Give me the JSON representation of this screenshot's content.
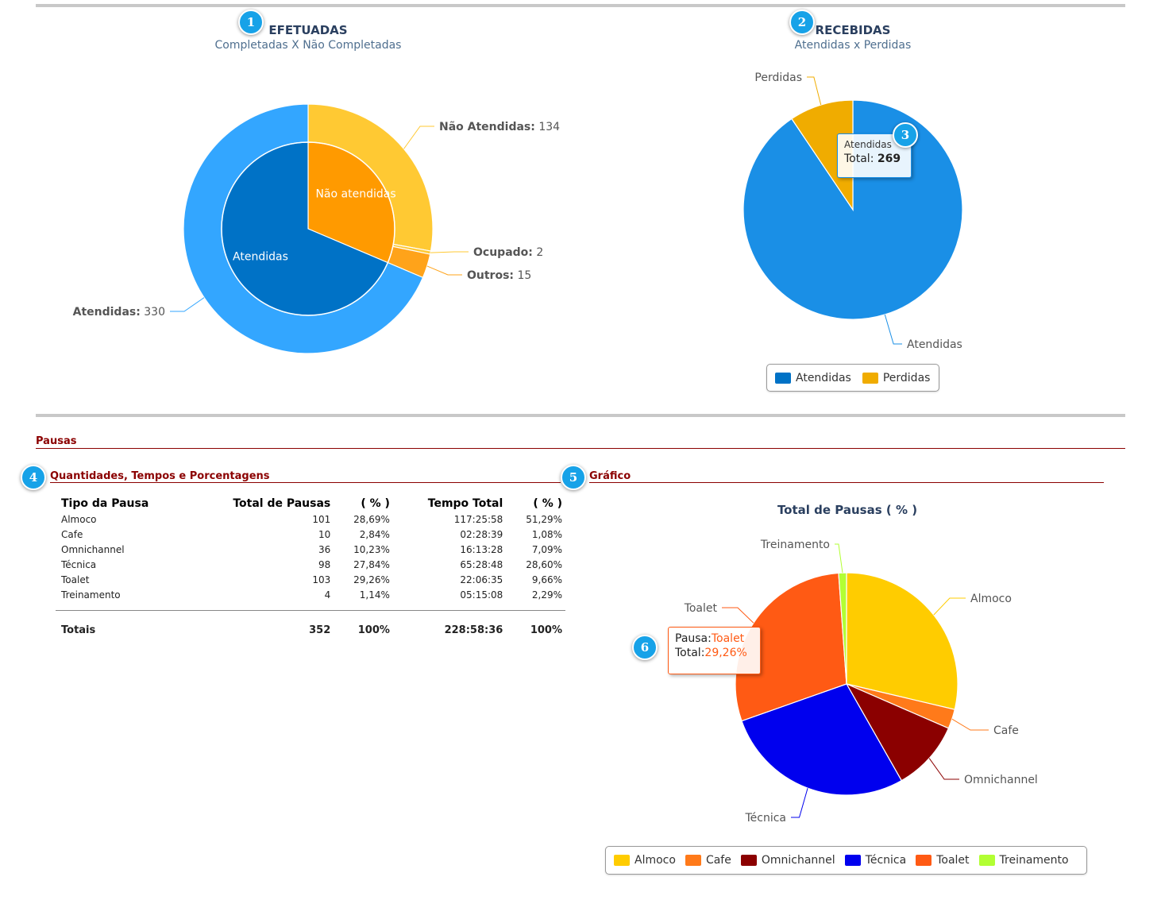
{
  "efetuadas": {
    "badge": "1",
    "title": "EFETUADAS",
    "subtitle": "Completadas X Não Completadas",
    "outer": [
      {
        "name": "Não Atendidas",
        "value": 134,
        "color": "#ffc933"
      },
      {
        "name": "Ocupado",
        "value": 2,
        "color": "#ffc933"
      },
      {
        "name": "Outros",
        "value": 15,
        "color": "#ffa31a"
      },
      {
        "name": "Atendidas",
        "value": 330,
        "color": "#33a6ff"
      }
    ],
    "inner": [
      {
        "name": "Não atendidas",
        "value": 151,
        "color": "#ff9a00"
      },
      {
        "name": "Atendidas",
        "value": 330,
        "color": "#0072c6"
      }
    ]
  },
  "recebidas": {
    "badge": "2",
    "title": "RECEBIDAS",
    "subtitle": "Atendidas x Perdidas",
    "tooltip_badge": "3",
    "tooltip_title": "Atendidas",
    "tooltip_prefix": "Total: ",
    "tooltip_value": "269",
    "slices": [
      {
        "name": "Atendidas",
        "value": 269,
        "color": "#1a8fe6"
      },
      {
        "name": "Perdidas",
        "value": 28,
        "color": "#f0ac00"
      }
    ],
    "legend": [
      {
        "label": "Atendidas",
        "color": "#0072c6"
      },
      {
        "label": "Perdidas",
        "color": "#f0ac00"
      }
    ]
  },
  "pausas": {
    "section_title": "Pausas",
    "table_badge": "4",
    "table_title": "Quantidades, Tempos e Porcentagens",
    "chart_badge": "5",
    "chart_heading": "Gráfico",
    "headers": [
      "Tipo da Pausa",
      "Total de Pausas",
      "( % )",
      "Tempo Total",
      "( % )"
    ],
    "rows": [
      [
        "Almoco",
        "101",
        "28,69%",
        "117:25:58",
        "51,29%"
      ],
      [
        "Cafe",
        "10",
        "2,84%",
        "02:28:39",
        "1,08%"
      ],
      [
        "Omnichannel",
        "36",
        "10,23%",
        "16:13:28",
        "7,09%"
      ],
      [
        "Técnica",
        "98",
        "27,84%",
        "65:28:48",
        "28,60%"
      ],
      [
        "Toalet",
        "103",
        "29,26%",
        "22:06:35",
        "9,66%"
      ],
      [
        "Treinamento",
        "4",
        "1,14%",
        "05:15:08",
        "2,29%"
      ]
    ],
    "totals": [
      "Totais",
      "352",
      "100%",
      "228:58:36",
      "100%"
    ]
  },
  "chart_data": {
    "type": "pie",
    "title": "Total de Pausas ( % )",
    "slices": [
      {
        "name": "Almoco",
        "value": 28.69,
        "color": "#ffcc00"
      },
      {
        "name": "Cafe",
        "value": 2.84,
        "color": "#ff7a1a"
      },
      {
        "name": "Omnichannel",
        "value": 10.23,
        "color": "#8b0000"
      },
      {
        "name": "Técnica",
        "value": 27.84,
        "color": "#0000ee"
      },
      {
        "name": "Toalet",
        "value": 29.26,
        "color": "#ff5a14"
      },
      {
        "name": "Treinamento",
        "value": 1.14,
        "color": "#b2ff33"
      }
    ],
    "legend_placement": "bottom",
    "tooltip": {
      "badge": "6",
      "line1_label": "Pausa:",
      "line1_value": "Toalet",
      "line2_label": "Total:",
      "line2_value": "29,26%"
    }
  }
}
